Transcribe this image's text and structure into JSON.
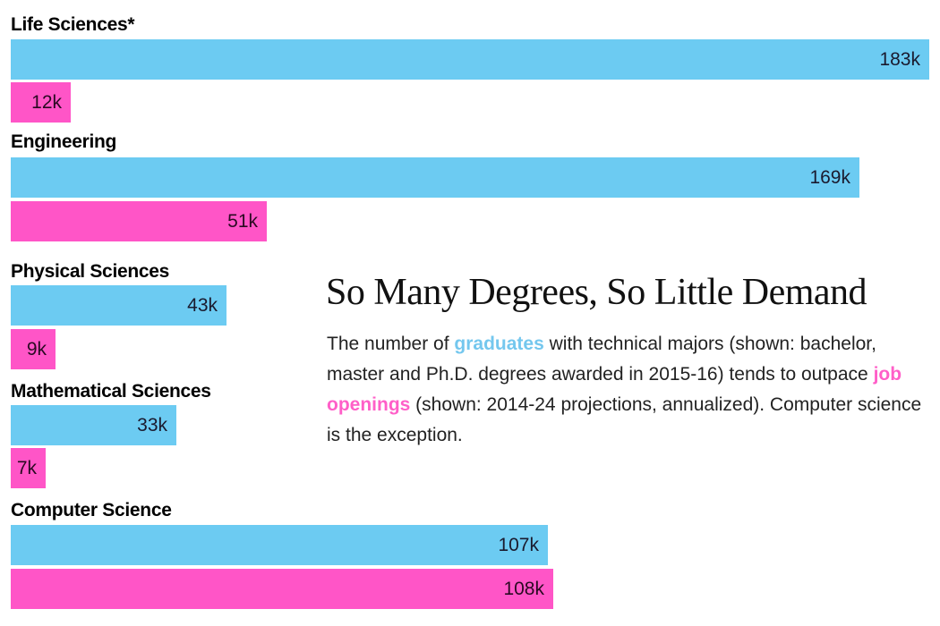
{
  "colors": {
    "graduates": "#6ccbf2",
    "job_openings": "#ff55c7"
  },
  "title": "So Many Degrees, So Little Demand",
  "description": {
    "part1": "The number of ",
    "graduates_word": "graduates",
    "part2": " with technical majors (shown: bachelor, master and Ph.D. degrees awarded in 2015-16) tends to outpace ",
    "jobs_word": "job openings",
    "part3": " (shown: 2014-24 projections, annualized). Computer science is the exception."
  },
  "chart_data": {
    "type": "bar",
    "orientation": "horizontal",
    "title": "So Many Degrees, So Little Demand",
    "xlabel": "",
    "ylabel": "",
    "units": "thousands",
    "xlim": [
      0,
      183
    ],
    "categories": [
      "Life Sciences*",
      "Engineering",
      "Physical Sciences",
      "Mathematical Sciences",
      "Computer Science"
    ],
    "series": [
      {
        "name": "graduates",
        "values": [
          183,
          169,
          43,
          33,
          107
        ],
        "labels": [
          "183k",
          "169k",
          "43k",
          "33k",
          "107k"
        ]
      },
      {
        "name": "job openings",
        "values": [
          12,
          51,
          9,
          7,
          108
        ],
        "labels": [
          "12k",
          "51k",
          "9k",
          "7k",
          "108k"
        ]
      }
    ],
    "grid": false,
    "legend": "inline in description text"
  }
}
